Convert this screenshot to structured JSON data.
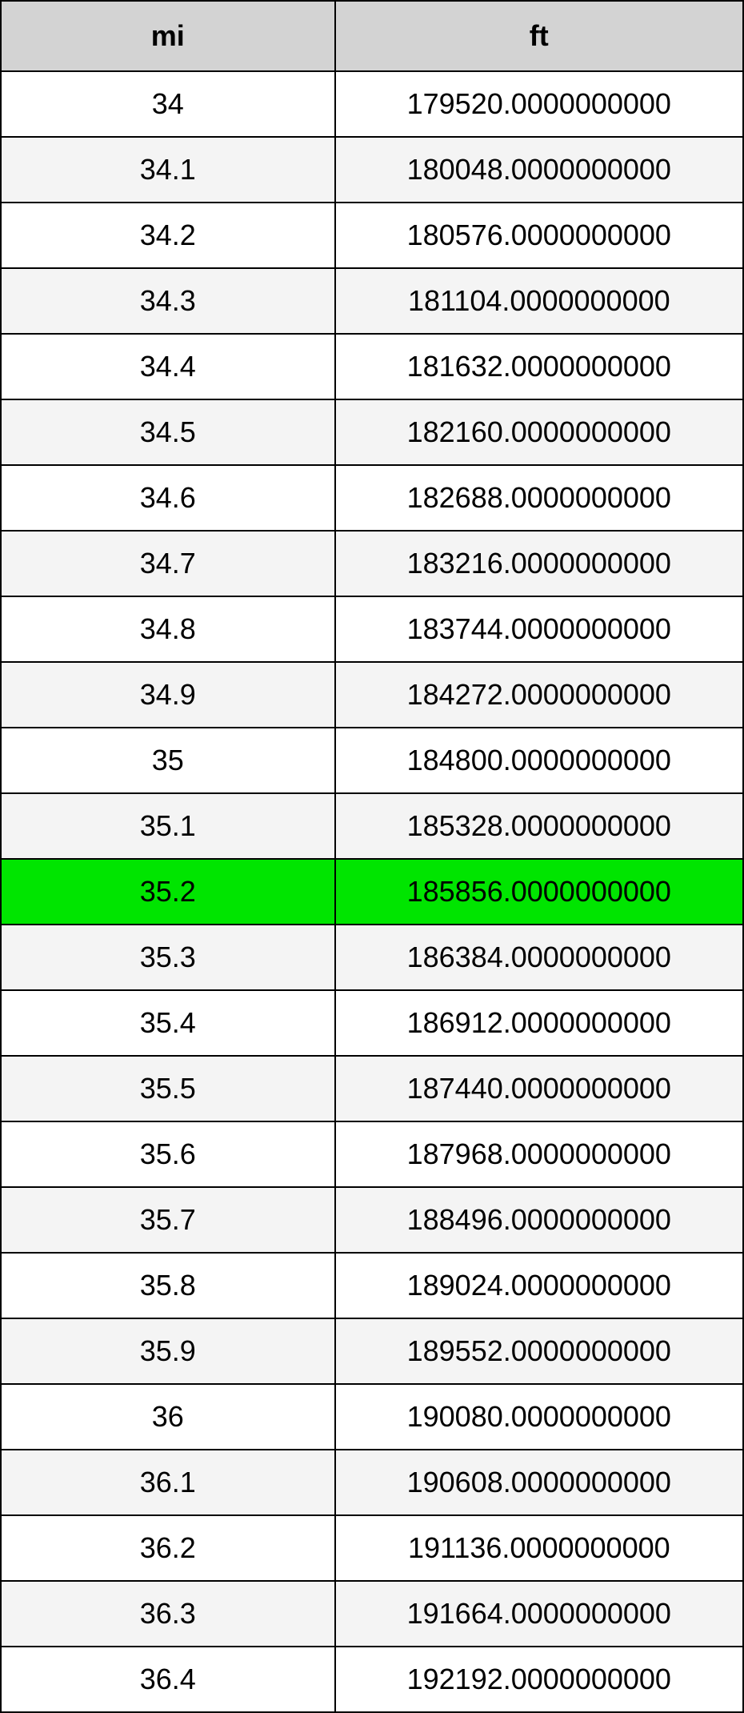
{
  "table": {
    "type": "table",
    "columns": [
      {
        "key": "mi",
        "label": "mi",
        "width": "45%"
      },
      {
        "key": "ft",
        "label": "ft",
        "width": "55%"
      }
    ],
    "header_bg": "#d3d3d3",
    "header_fontsize": 36,
    "header_fontweight": "bold",
    "cell_fontsize": 36,
    "border_color": "#000000",
    "border_width": 2,
    "row_bg_even": "#ffffff",
    "row_bg_odd": "#f4f4f4",
    "highlight_bg": "#00e500",
    "highlight_row_index": 12,
    "rows": [
      {
        "mi": "34",
        "ft": "179520.0000000000"
      },
      {
        "mi": "34.1",
        "ft": "180048.0000000000"
      },
      {
        "mi": "34.2",
        "ft": "180576.0000000000"
      },
      {
        "mi": "34.3",
        "ft": "181104.0000000000"
      },
      {
        "mi": "34.4",
        "ft": "181632.0000000000"
      },
      {
        "mi": "34.5",
        "ft": "182160.0000000000"
      },
      {
        "mi": "34.6",
        "ft": "182688.0000000000"
      },
      {
        "mi": "34.7",
        "ft": "183216.0000000000"
      },
      {
        "mi": "34.8",
        "ft": "183744.0000000000"
      },
      {
        "mi": "34.9",
        "ft": "184272.0000000000"
      },
      {
        "mi": "35",
        "ft": "184800.0000000000"
      },
      {
        "mi": "35.1",
        "ft": "185328.0000000000"
      },
      {
        "mi": "35.2",
        "ft": "185856.0000000000"
      },
      {
        "mi": "35.3",
        "ft": "186384.0000000000"
      },
      {
        "mi": "35.4",
        "ft": "186912.0000000000"
      },
      {
        "mi": "35.5",
        "ft": "187440.0000000000"
      },
      {
        "mi": "35.6",
        "ft": "187968.0000000000"
      },
      {
        "mi": "35.7",
        "ft": "188496.0000000000"
      },
      {
        "mi": "35.8",
        "ft": "189024.0000000000"
      },
      {
        "mi": "35.9",
        "ft": "189552.0000000000"
      },
      {
        "mi": "36",
        "ft": "190080.0000000000"
      },
      {
        "mi": "36.1",
        "ft": "190608.0000000000"
      },
      {
        "mi": "36.2",
        "ft": "191136.0000000000"
      },
      {
        "mi": "36.3",
        "ft": "191664.0000000000"
      },
      {
        "mi": "36.4",
        "ft": "192192.0000000000"
      }
    ]
  }
}
